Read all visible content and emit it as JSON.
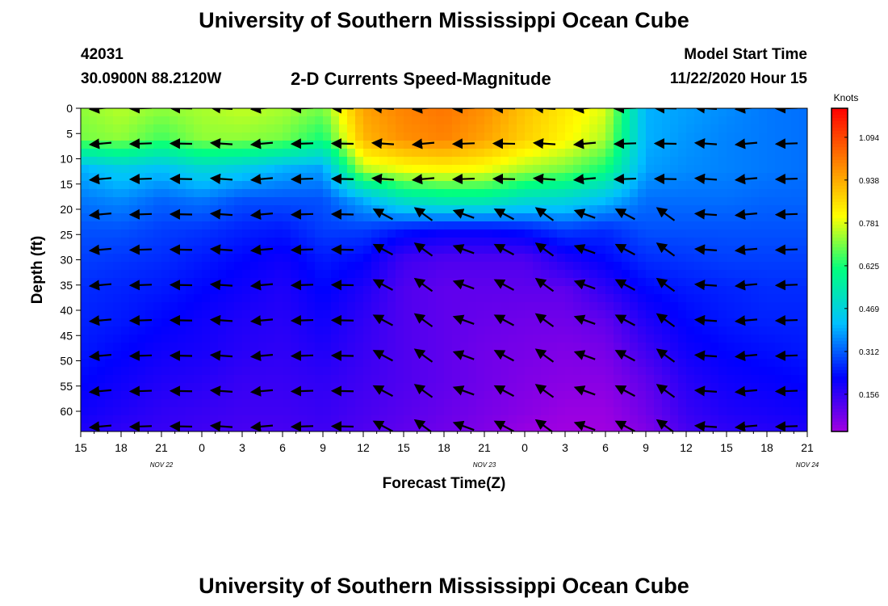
{
  "header": {
    "title": "University of Southern Mississippi Ocean Cube",
    "station_id": "42031",
    "location": "30.0900N 88.2120W",
    "subtitle": "2-D Currents Speed-Magnitude",
    "model_start_label": "Model Start Time",
    "model_start_value": "11/22/2020 Hour 15"
  },
  "footer": {
    "title": "University of Southern Mississippi Ocean Cube"
  },
  "chart_data": {
    "type": "heatmap",
    "title": "2-D Currents Speed-Magnitude",
    "xlabel": "Forecast Time(Z)",
    "ylabel": "Depth (ft)",
    "x_tick_labels": [
      "15",
      "18",
      "21",
      "0",
      "3",
      "6",
      "9",
      "12",
      "15",
      "18",
      "21",
      "0",
      "3",
      "6",
      "9",
      "12",
      "15",
      "18",
      "21"
    ],
    "x_date_labels": [
      {
        "label": "NOV  22",
        "at_hour": 6
      },
      {
        "label": "NOV  23",
        "at_hour": 30
      },
      {
        "label": "NOV  24",
        "at_hour": 54
      }
    ],
    "xlim_hours": [
      0,
      54
    ],
    "y_tick_labels": [
      "0",
      "5",
      "10",
      "15",
      "20",
      "25",
      "30",
      "35",
      "40",
      "45",
      "50",
      "55",
      "60"
    ],
    "ylim_ft": [
      0,
      64
    ],
    "colorbar": {
      "unit_label": "Knots",
      "tick_labels": [
        "1.094",
        "0.938",
        "0.781",
        "0.625",
        "0.469",
        "0.312",
        "0.156"
      ],
      "range": [
        0.02,
        1.2
      ],
      "colors": [
        "#a000e0",
        "#0000ff",
        "#00c0ff",
        "#00ff80",
        "#ffff00",
        "#ff8000",
        "#ff0000"
      ]
    },
    "speed_grid": {
      "time_hours": [
        0,
        3,
        6,
        9,
        12,
        15,
        18,
        21,
        24,
        27,
        30,
        33,
        36,
        39,
        42,
        45,
        48,
        51,
        54
      ],
      "depth_ft": [
        0,
        6,
        12,
        18,
        24,
        30,
        36,
        42,
        48,
        54,
        60,
        64
      ],
      "values": [
        [
          0.72,
          0.75,
          0.72,
          0.74,
          0.76,
          0.74,
          0.7,
          0.95,
          1.0,
          1.02,
          0.98,
          0.9,
          0.84,
          0.78,
          0.4,
          0.38,
          0.36,
          0.34,
          0.33
        ],
        [
          0.7,
          0.72,
          0.66,
          0.72,
          0.72,
          0.7,
          0.62,
          0.92,
          0.98,
          1.0,
          0.95,
          0.88,
          0.82,
          0.74,
          0.4,
          0.37,
          0.35,
          0.34,
          0.33
        ],
        [
          0.4,
          0.45,
          0.42,
          0.48,
          0.45,
          0.4,
          0.38,
          0.75,
          0.8,
          0.82,
          0.8,
          0.74,
          0.7,
          0.62,
          0.38,
          0.36,
          0.35,
          0.34,
          0.33
        ],
        [
          0.34,
          0.36,
          0.32,
          0.34,
          0.3,
          0.3,
          0.3,
          0.4,
          0.52,
          0.56,
          0.56,
          0.5,
          0.48,
          0.42,
          0.33,
          0.33,
          0.33,
          0.32,
          0.32
        ],
        [
          0.3,
          0.3,
          0.28,
          0.27,
          0.25,
          0.24,
          0.28,
          0.28,
          0.24,
          0.22,
          0.22,
          0.24,
          0.28,
          0.26,
          0.3,
          0.3,
          0.3,
          0.3,
          0.3
        ],
        [
          0.28,
          0.27,
          0.26,
          0.24,
          0.22,
          0.2,
          0.24,
          0.22,
          0.14,
          0.12,
          0.12,
          0.12,
          0.18,
          0.22,
          0.26,
          0.27,
          0.28,
          0.28,
          0.28
        ],
        [
          0.26,
          0.25,
          0.24,
          0.22,
          0.2,
          0.18,
          0.22,
          0.18,
          0.12,
          0.1,
          0.1,
          0.1,
          0.1,
          0.16,
          0.22,
          0.24,
          0.25,
          0.26,
          0.26
        ],
        [
          0.25,
          0.24,
          0.22,
          0.2,
          0.18,
          0.17,
          0.2,
          0.16,
          0.12,
          0.1,
          0.09,
          0.08,
          0.08,
          0.1,
          0.18,
          0.22,
          0.24,
          0.25,
          0.25
        ],
        [
          0.24,
          0.22,
          0.2,
          0.19,
          0.17,
          0.16,
          0.18,
          0.15,
          0.12,
          0.1,
          0.08,
          0.07,
          0.06,
          0.07,
          0.14,
          0.2,
          0.22,
          0.23,
          0.24
        ],
        [
          0.22,
          0.2,
          0.18,
          0.17,
          0.15,
          0.15,
          0.16,
          0.14,
          0.12,
          0.1,
          0.08,
          0.06,
          0.05,
          0.05,
          0.1,
          0.17,
          0.2,
          0.21,
          0.22
        ],
        [
          0.2,
          0.18,
          0.16,
          0.15,
          0.14,
          0.14,
          0.15,
          0.13,
          0.11,
          0.09,
          0.07,
          0.05,
          0.03,
          0.03,
          0.08,
          0.15,
          0.18,
          0.19,
          0.2
        ],
        [
          0.18,
          0.16,
          0.15,
          0.14,
          0.13,
          0.13,
          0.14,
          0.12,
          0.1,
          0.08,
          0.06,
          0.03,
          0.02,
          0.02,
          0.06,
          0.13,
          0.16,
          0.17,
          0.18
        ]
      ]
    },
    "vector_depths_ft": [
      0,
      7,
      14,
      21,
      28,
      35,
      42,
      49,
      56,
      63
    ]
  }
}
